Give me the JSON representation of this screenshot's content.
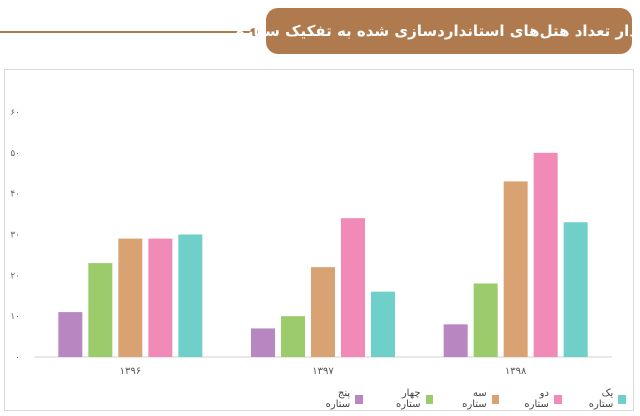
{
  "title": "نمودار تعداد هتل‌های استانداردسازی شده به تفکیک ستاره",
  "colors": {
    "accent": "#b07a4f",
    "five_star": "#b887c1",
    "four_star": "#9bcb6b",
    "three_star": "#d9a273",
    "two_star": "#f28ab8",
    "one_star": "#6fcfc9"
  },
  "chart_data": {
    "type": "bar",
    "categories": [
      "۱۳۹۶",
      "۱۳۹۷",
      "۱۳۹۸"
    ],
    "y_ticks": [
      "۰",
      "۱۰",
      "۲۰",
      "۳۰",
      "۴۰",
      "۵۰",
      "۶۰"
    ],
    "ylim": [
      0,
      60
    ],
    "grid": false,
    "legend_position": "bottom",
    "series": [
      {
        "name": "پنج ستاره",
        "color": "#b887c1",
        "values": [
          11,
          7,
          8
        ]
      },
      {
        "name": "چهار ستاره",
        "color": "#9bcb6b",
        "values": [
          23,
          10,
          18
        ]
      },
      {
        "name": "سه ستاره",
        "color": "#d9a273",
        "values": [
          29,
          22,
          43
        ]
      },
      {
        "name": "دو ستاره",
        "color": "#f28ab8",
        "values": [
          29,
          34,
          50
        ]
      },
      {
        "name": "یک ستاره",
        "color": "#6fcfc9",
        "values": [
          30,
          16,
          33
        ]
      }
    ]
  }
}
